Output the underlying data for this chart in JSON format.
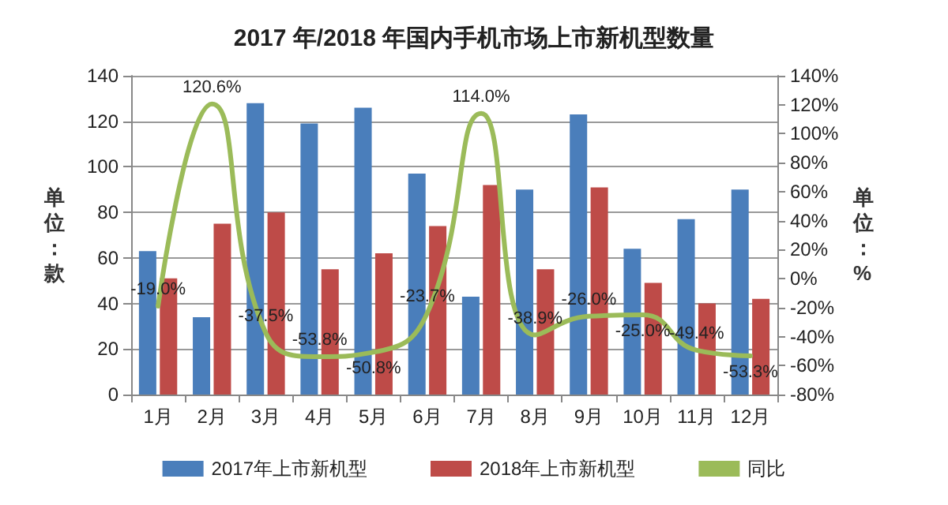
{
  "chart_data": {
    "type": "bar",
    "title": "2017 年/2018 年国内手机市场上市新机型数量",
    "ylabel": "单位：款",
    "y2label": "单位：%",
    "categories": [
      "1月",
      "2月",
      "3月",
      "4月",
      "5月",
      "6月",
      "7月",
      "8月",
      "9月",
      "10月",
      "11月",
      "12月"
    ],
    "series": [
      {
        "name": "2017年上市新机型",
        "color": "#4a7ebb",
        "values": [
          63,
          34,
          128,
          119,
          126,
          97,
          43,
          90,
          123,
          64,
          77,
          90
        ]
      },
      {
        "name": "2018年上市新机型",
        "color": "#be4b48",
        "values": [
          51,
          75,
          80,
          55,
          62,
          74,
          92,
          55,
          91,
          49,
          40,
          42
        ]
      },
      {
        "name": "同比",
        "type": "line",
        "axis": "y2",
        "color": "#9bbb59",
        "marker": "none",
        "line_style": "solid",
        "values": [
          -19.0,
          120.6,
          -37.5,
          -53.8,
          -50.8,
          -23.7,
          114.0,
          -38.9,
          -26.0,
          -25.0,
          -49.4,
          -53.3
        ],
        "value_labels": [
          "-19.0%",
          "120.6%",
          "-37.5%",
          "-53.8%",
          "-50.8%",
          "-23.7%",
          "114.0%",
          "-38.9%",
          "-26.0%",
          "-25.0%",
          "-49.4%",
          "-53.3%"
        ]
      }
    ],
    "ylim": [
      0,
      140
    ],
    "yticks": [
      0,
      20,
      40,
      60,
      80,
      100,
      120,
      140
    ],
    "y2lim": [
      -80,
      140
    ],
    "y2ticks": [
      {
        "value": -80,
        "label": "-80%"
      },
      {
        "value": -60,
        "label": "-60%"
      },
      {
        "value": -40,
        "label": "-40%"
      },
      {
        "value": -20,
        "label": "-20%"
      },
      {
        "value": 0,
        "label": "0%"
      },
      {
        "value": 20,
        "label": "20%"
      },
      {
        "value": 40,
        "label": "40%"
      },
      {
        "value": 60,
        "label": "60%"
      },
      {
        "value": 80,
        "label": "80%"
      },
      {
        "value": 100,
        "label": "100%"
      },
      {
        "value": 120,
        "label": "120%"
      },
      {
        "value": 140,
        "label": "140%"
      }
    ],
    "grid": "y",
    "legend": "bottom"
  }
}
